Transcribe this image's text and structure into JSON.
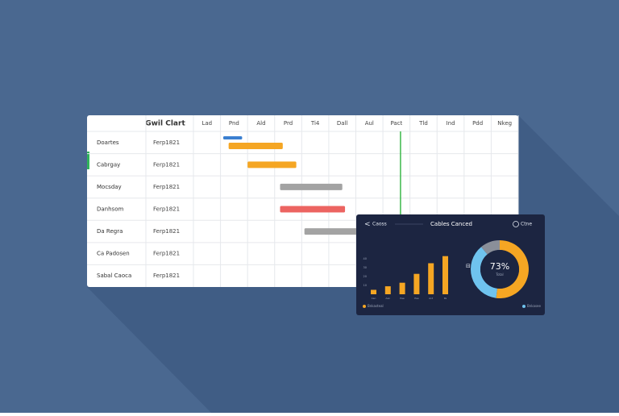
{
  "gantt": {
    "title": "Gwil Clart",
    "columns": [
      "Lad",
      "Pnd",
      "Ald",
      "Prd",
      "Ti4",
      "Dall",
      "Aul",
      "Pact",
      "Tld",
      "Ind",
      "Pdd",
      "Nkeg"
    ],
    "rows": [
      {
        "name": "Doartes",
        "id": "Ferp1821"
      },
      {
        "name": "Cabrgay",
        "id": "Ferp1821"
      },
      {
        "name": "Mocsday",
        "id": "Ferp1821"
      },
      {
        "name": "Danhsom",
        "id": "Ferp1821"
      },
      {
        "name": "Da Regra",
        "id": "Ferp1821"
      },
      {
        "name": "Ca Padosen",
        "id": "Ferp1821"
      },
      {
        "name": "Sabal Caoca",
        "id": "Ferp1821"
      }
    ],
    "tasks": [
      {
        "row": 0,
        "start": 1.1,
        "end": 1.8,
        "color": "#3a7fd0"
      },
      {
        "row": 0,
        "start": 1.3,
        "end": 3.3,
        "color": "#f5a623"
      },
      {
        "row": 1,
        "start": 2.0,
        "end": 3.8,
        "color": "#f5a623"
      },
      {
        "row": 2,
        "start": 3.2,
        "end": 5.5,
        "color": "#a3a3a3"
      },
      {
        "row": 3,
        "start": 3.2,
        "end": 5.6,
        "color": "#ec6461"
      },
      {
        "row": 4,
        "start": 4.1,
        "end": 6.1,
        "color": "#a3a3a3"
      }
    ],
    "today": 7.65
  },
  "panel": {
    "back": "Caoss",
    "title": "Cables Canced",
    "action": "Ctne",
    "bars": {
      "values": [
        5,
        9,
        13,
        23,
        35,
        43
      ],
      "categories": [
        "Can",
        "Aan",
        "Pae",
        "Pae",
        "Ard",
        "Pa"
      ],
      "color": "#f5a623",
      "ylim": [
        0,
        50
      ],
      "yticks": [
        10,
        20,
        30,
        40
      ]
    },
    "donut": {
      "values": [
        52,
        37,
        11
      ],
      "colors": [
        "#f5a623",
        "#6fc3ee",
        "#8a8f99"
      ],
      "center": "73%",
      "sub": "Total"
    },
    "legend": [
      {
        "name": "Bnkasteal",
        "color": "#f5a623"
      },
      {
        "name": "Bnkasee",
        "color": "#6fc3ee"
      }
    ]
  }
}
